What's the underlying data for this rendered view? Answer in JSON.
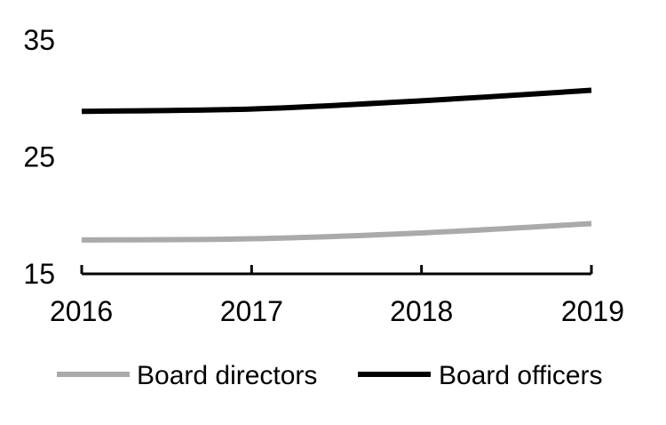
{
  "chart_data": {
    "type": "line",
    "title": "",
    "xlabel": "",
    "ylabel": "",
    "x": [
      "2016",
      "2017",
      "2018",
      "2019"
    ],
    "ylim": [
      15,
      35
    ],
    "yticks": [
      "15",
      "25",
      "35"
    ],
    "grid": false,
    "legend_position": "bottom",
    "series": [
      {
        "name": "Board directors",
        "values": [
          17.9,
          18.0,
          18.5,
          19.3
        ],
        "color": "#aaaaaa"
      },
      {
        "name": "Board officers",
        "values": [
          28.9,
          29.1,
          29.8,
          30.7
        ],
        "color": "#000000"
      }
    ]
  }
}
